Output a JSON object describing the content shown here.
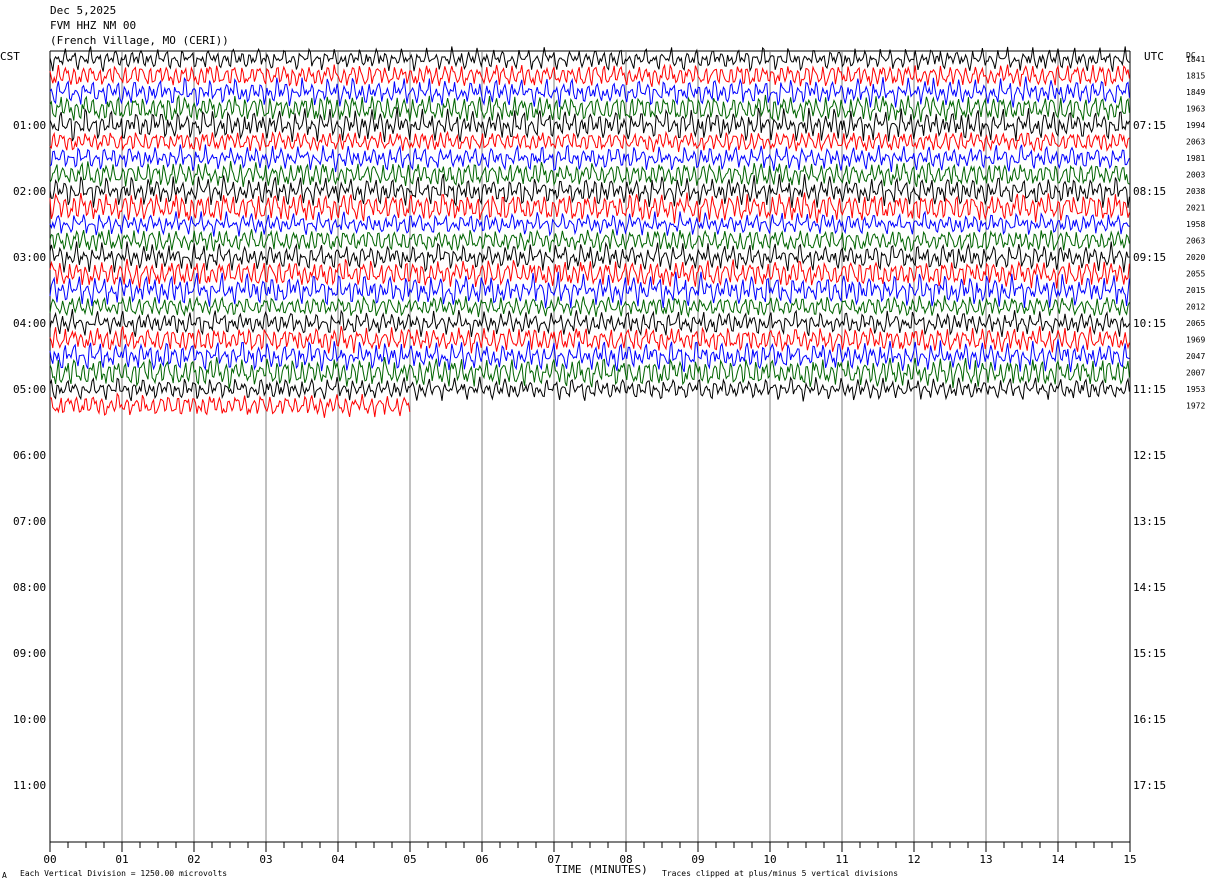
{
  "header": {
    "date": "Dec 5,2025",
    "station": "FVM HHZ NM 00",
    "location": "(French Village, MO (CERI))"
  },
  "axis_labels": {
    "left_tz": "CST",
    "right_tz": "UTC",
    "dc_label": "DC",
    "x_title": "TIME (MINUTES)"
  },
  "footer": {
    "scale_note": "Each Vertical Division = 1250.00 microvolts",
    "clip_note": "Traces clipped at plus/minus 5 vertical divisions",
    "corner_mark": "A"
  },
  "colors": {
    "trace_cycle": [
      "#000000",
      "#ff0000",
      "#0000ff",
      "#006400"
    ],
    "grid": "#808080"
  },
  "chart_data": {
    "type": "line",
    "title": "FVM HHZ NM 00",
    "xlabel": "TIME (MINUTES)",
    "ylabel": "",
    "x_ticks": [
      "00",
      "01",
      "02",
      "03",
      "04",
      "05",
      "06",
      "07",
      "08",
      "09",
      "10",
      "11",
      "12",
      "13",
      "14",
      "15"
    ],
    "xlim": [
      0,
      15
    ],
    "minor_ticks_per_minute": 4,
    "rows_per_hour": 4,
    "row_duration_minutes": 15,
    "grid": true,
    "left_time_labels": [
      "01:00",
      "02:00",
      "03:00",
      "04:00",
      "05:00",
      "06:00",
      "07:00",
      "08:00",
      "09:00",
      "10:00",
      "11:00"
    ],
    "right_time_labels": [
      "07:15",
      "08:15",
      "09:15",
      "10:15",
      "11:15",
      "12:15",
      "13:15",
      "14:15",
      "15:15",
      "16:15",
      "17:15"
    ],
    "dc_offsets": [
      "1841",
      "1815",
      "1849",
      "1963",
      "1994",
      "2063",
      "1981",
      "2003",
      "2038",
      "2021",
      "1958",
      "2063",
      "2020",
      "2055",
      "2015",
      "2012",
      "2065",
      "1969",
      "2047",
      "2007",
      "1953",
      "1972"
    ],
    "trace_count": 22,
    "last_trace_end_minute": 5.0,
    "amplitude_clip_divisions": 5,
    "microvolts_per_division": 1250.0
  }
}
